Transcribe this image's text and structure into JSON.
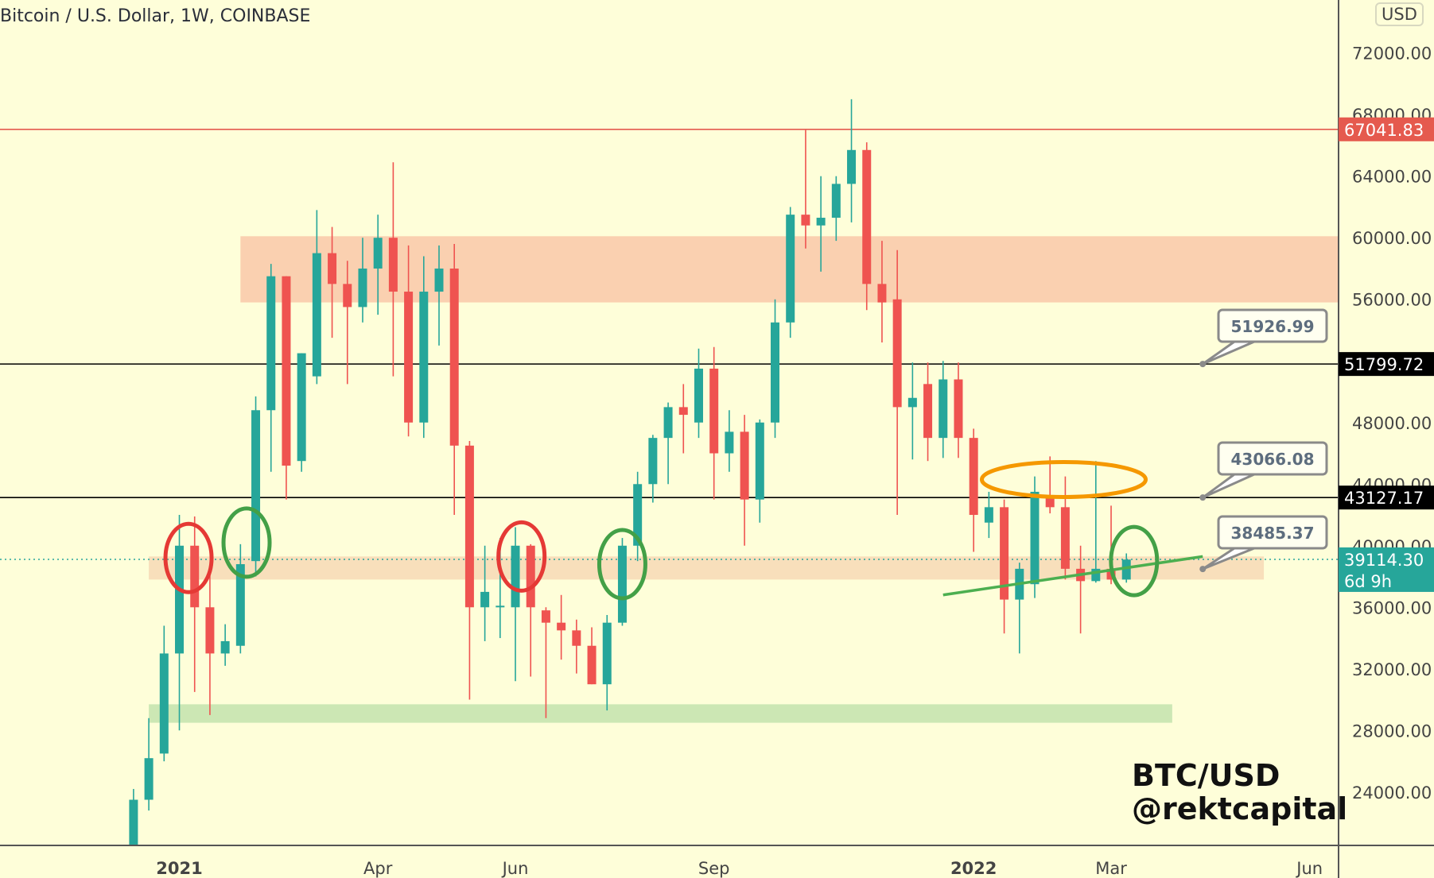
{
  "header": {
    "title": "Bitcoin / U.S. Dollar, 1W, COINBASE",
    "currency": "USD"
  },
  "watermark": {
    "line1": "BTC/USD",
    "line2": "@rektcapital"
  },
  "colors": {
    "up": "#26a69a",
    "down": "#ef5350",
    "bg": "#fefed9"
  },
  "chart_data": {
    "type": "candlestick",
    "title": "Bitcoin / U.S. Dollar, 1W, COINBASE",
    "interval": "1W",
    "ylim": [
      20000,
      74000
    ],
    "y_ticks": [
      "72000.00",
      "68000.00",
      "64000.00",
      "60000.00",
      "56000.00",
      "48000.00",
      "44000.00",
      "40000.00",
      "36000.00",
      "32000.00",
      "28000.00",
      "24000.00"
    ],
    "y_tick_values": [
      72000,
      68000,
      64000,
      60000,
      56000,
      48000,
      44000,
      40000,
      36000,
      32000,
      28000,
      24000
    ],
    "x_ticks": [
      {
        "label": "2021",
        "index": 3
      },
      {
        "label": "Apr",
        "index": 16
      },
      {
        "label": "Jun",
        "index": 25
      },
      {
        "label": "Sep",
        "index": 38
      },
      {
        "label": "2022",
        "index": 55
      },
      {
        "label": "Mar",
        "index": 64
      },
      {
        "label": "Jun",
        "index": 77
      }
    ],
    "ohlc": [
      [
        19000,
        24200,
        19000,
        23500
      ],
      [
        23500,
        28800,
        22800,
        26200
      ],
      [
        26500,
        34800,
        26000,
        33000
      ],
      [
        33000,
        42000,
        28000,
        40000
      ],
      [
        40000,
        41900,
        30500,
        36000
      ],
      [
        36000,
        38500,
        29000,
        33000
      ],
      [
        33000,
        34900,
        32200,
        33800
      ],
      [
        33500,
        40100,
        33000,
        38800
      ],
      [
        39000,
        49700,
        38000,
        48800
      ],
      [
        48800,
        58300,
        44800,
        57500
      ],
      [
        57500,
        57500,
        43000,
        45200
      ],
      [
        45500,
        52500,
        44800,
        52500
      ],
      [
        51000,
        61800,
        50500,
        59000
      ],
      [
        59000,
        60700,
        53500,
        57000
      ],
      [
        57000,
        58500,
        50500,
        55500
      ],
      [
        55500,
        60000,
        54500,
        58000
      ],
      [
        58000,
        61500,
        55000,
        60000
      ],
      [
        60000,
        64900,
        51000,
        56500
      ],
      [
        56500,
        59500,
        47100,
        48000
      ],
      [
        48000,
        58800,
        47000,
        56500
      ],
      [
        56500,
        59500,
        53000,
        58000
      ],
      [
        58000,
        59600,
        42000,
        46500
      ],
      [
        46500,
        46800,
        30000,
        36000
      ],
      [
        36000,
        40000,
        33800,
        37000
      ],
      [
        36000,
        40500,
        34000,
        36100
      ],
      [
        36000,
        41200,
        31200,
        40000
      ],
      [
        40000,
        40100,
        31500,
        36000
      ],
      [
        35800,
        36000,
        28800,
        35000
      ],
      [
        35000,
        36800,
        32600,
        34500
      ],
      [
        34500,
        35200,
        31700,
        33500
      ],
      [
        33500,
        34700,
        31000,
        31000
      ],
      [
        31000,
        35500,
        29300,
        35000
      ],
      [
        35000,
        40500,
        34800,
        40000
      ],
      [
        40000,
        44800,
        39000,
        44000
      ],
      [
        44000,
        47200,
        42800,
        47000
      ],
      [
        47000,
        49300,
        44000,
        49000
      ],
      [
        49000,
        50500,
        46000,
        48500
      ],
      [
        48000,
        52800,
        47000,
        51500
      ],
      [
        51500,
        52900,
        43000,
        46000
      ],
      [
        46000,
        48800,
        44800,
        47400
      ],
      [
        47400,
        48500,
        40000,
        43000
      ],
      [
        43000,
        48200,
        41500,
        48000
      ],
      [
        48000,
        56000,
        47000,
        54500
      ],
      [
        54500,
        62000,
        53500,
        61500
      ],
      [
        61500,
        67000,
        59300,
        60800
      ],
      [
        60800,
        64000,
        57800,
        61300
      ],
      [
        61300,
        64000,
        59800,
        63500
      ],
      [
        63500,
        69000,
        61000,
        65700
      ],
      [
        65700,
        66200,
        55300,
        57000
      ],
      [
        57000,
        59800,
        53200,
        55800
      ],
      [
        56000,
        59200,
        42000,
        49000
      ],
      [
        49000,
        51900,
        45600,
        49600
      ],
      [
        50500,
        51900,
        45500,
        47000
      ],
      [
        47000,
        52000,
        45700,
        50800
      ],
      [
        50800,
        51900,
        45700,
        47000
      ],
      [
        47000,
        47600,
        39600,
        42000
      ],
      [
        41500,
        43500,
        40500,
        42500
      ],
      [
        42500,
        43000,
        34300,
        36500
      ],
      [
        36500,
        38900,
        33000,
        38500
      ],
      [
        37500,
        44500,
        36600,
        43500
      ],
      [
        43200,
        45800,
        42100,
        42500
      ],
      [
        42500,
        44500,
        37800,
        38500
      ],
      [
        38500,
        40000,
        34300,
        37700
      ],
      [
        37700,
        45500,
        37600,
        38500
      ],
      [
        38500,
        42600,
        37500,
        37800
      ],
      [
        37800,
        39500,
        37600,
        39100
      ]
    ],
    "horizontal_lines": [
      {
        "price": 67041.83,
        "label": "67041.83",
        "color": "#e55a4e",
        "style": "solid"
      },
      {
        "price": 51799.72,
        "label": "51799.72",
        "color": "#000000",
        "style": "solid"
      },
      {
        "price": 43127.17,
        "label": "43127.17",
        "color": "#000000",
        "style": "solid"
      },
      {
        "price": 39114.3,
        "label": "39114.30",
        "sublabel": "6d 9h",
        "color": "#26a69a",
        "style": "dotted"
      }
    ],
    "zones": [
      {
        "name": "resistance-zone",
        "from_index": 7,
        "to_index": 80,
        "low": 55800,
        "high": 60100,
        "color": "#f9c8a8"
      },
      {
        "name": "support-zone-orange",
        "from_index": 1,
        "to_index": 74,
        "low": 37800,
        "high": 39300,
        "color": "#f7d9b5"
      },
      {
        "name": "support-zone-green",
        "from_index": 1,
        "to_index": 68,
        "low": 28500,
        "high": 29700,
        "color": "#c3e3ad"
      }
    ],
    "callouts": [
      {
        "text": "51926.99",
        "price": 51799.72,
        "index": 70
      },
      {
        "text": "43066.08",
        "price": 43127.17,
        "index": 70
      },
      {
        "text": "38485.37",
        "price": 38485.37,
        "index": 70
      }
    ],
    "trendline": {
      "from": {
        "index": 53,
        "price": 36800
      },
      "to": {
        "index": 70,
        "price": 39300
      },
      "color": "#4caf50"
    },
    "ellipses": [
      {
        "index": 3.6,
        "price": 39200,
        "color": "#e53935"
      },
      {
        "index": 7.4,
        "price": 40200,
        "color": "#43a047"
      },
      {
        "index": 25.4,
        "price": 39300,
        "color": "#e53935"
      },
      {
        "index": 32.0,
        "price": 38800,
        "color": "#43a047"
      },
      {
        "index": 65.5,
        "price": 39000,
        "color": "#43a047"
      },
      {
        "index": 60.9,
        "price": 44300,
        "color": "#f59800",
        "wide": true
      }
    ]
  }
}
